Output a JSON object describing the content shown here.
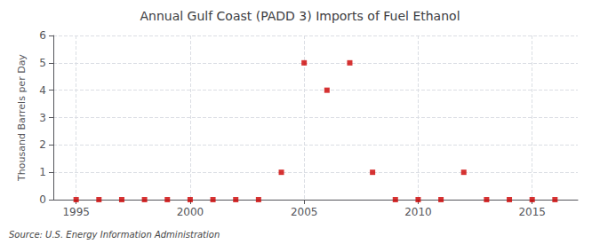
{
  "chart_data": {
    "type": "scatter",
    "title": "Annual Gulf Coast (PADD 3) Imports of Fuel Ethanol",
    "ylabel": "Thousand Barrels per Day",
    "source": "Source: U.S. Energy Information Administration",
    "x": [
      1995,
      1996,
      1997,
      1998,
      1999,
      2000,
      2001,
      2002,
      2003,
      2004,
      2005,
      2006,
      2007,
      2008,
      2009,
      2010,
      2011,
      2012,
      2013,
      2014,
      2015,
      2016
    ],
    "values": [
      0,
      0,
      0,
      0,
      0,
      0,
      0,
      0,
      0,
      1,
      5,
      4,
      5,
      1,
      0,
      0,
      0,
      1,
      0,
      0,
      0,
      0
    ],
    "color": "#cc0000",
    "marker": "square",
    "xlim": [
      1994.0,
      2017.0
    ],
    "xticks": [
      1995,
      2000,
      2005,
      2010,
      2015
    ],
    "ylim": [
      0,
      6
    ],
    "yticks": [
      0,
      1,
      2,
      3,
      4,
      5,
      6
    ],
    "grid": true
  }
}
